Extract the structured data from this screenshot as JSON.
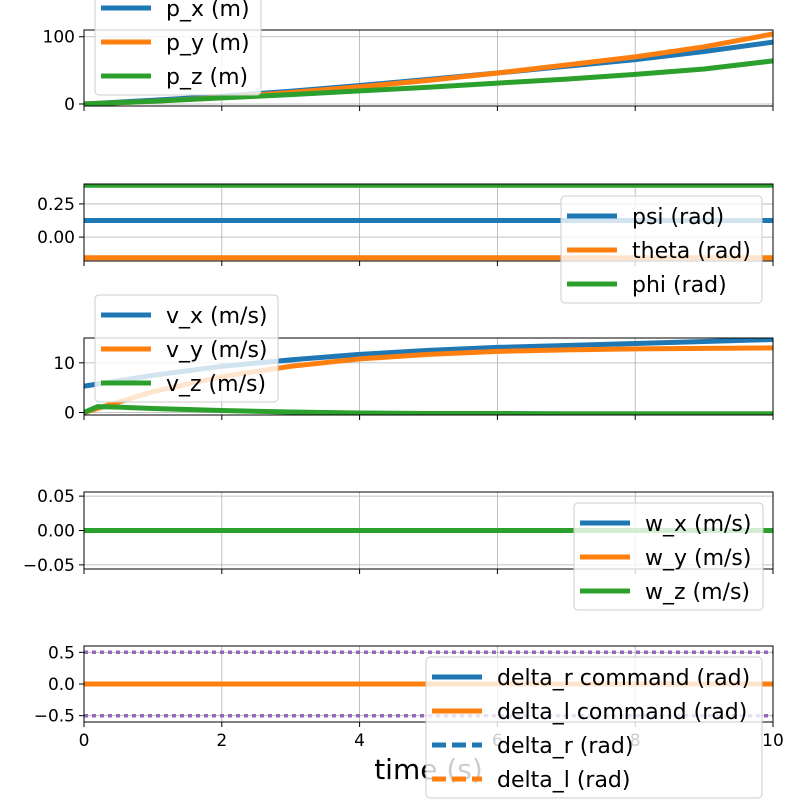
{
  "colors": {
    "blue": "#1f77b4",
    "orange": "#ff7f0e",
    "green": "#2ca02c",
    "purple": "#9467bd"
  },
  "chart_data": [
    {
      "type": "line",
      "xlim": [
        0,
        10
      ],
      "ylim": [
        -3,
        110
      ],
      "yticks": [
        0,
        100
      ],
      "ytick_labels": [
        "0",
        "100"
      ],
      "grid": true,
      "legend": "top-left",
      "series": [
        {
          "name": "p_x (m)",
          "color": "blue",
          "x": [
            0,
            1,
            2,
            3,
            4,
            5,
            6,
            7,
            8,
            9,
            10
          ],
          "values": [
            0,
            5.5,
            11.5,
            19,
            27.5,
            36.5,
            46,
            56,
            66,
            78,
            92
          ]
        },
        {
          "name": "p_y (m)",
          "color": "orange",
          "x": [
            0,
            1,
            2,
            3,
            4,
            5,
            6,
            7,
            8,
            9,
            10
          ],
          "values": [
            0,
            4,
            9.5,
            17,
            25.5,
            35,
            46,
            58,
            70,
            85,
            104
          ]
        },
        {
          "name": "p_z (m)",
          "color": "green",
          "x": [
            0,
            1,
            2,
            3,
            4,
            5,
            6,
            7,
            8,
            9,
            10
          ],
          "values": [
            0,
            4,
            9,
            14,
            19.5,
            25,
            31,
            37,
            44,
            52,
            64
          ]
        }
      ]
    },
    {
      "type": "line",
      "xlim": [
        0,
        10
      ],
      "ylim": [
        -0.18,
        0.4
      ],
      "yticks": [
        0.25,
        0.0
      ],
      "ytick_labels": [
        "0.25",
        "0.00"
      ],
      "grid": true,
      "legend": "lower-right",
      "series": [
        {
          "name": "psi (rad)",
          "color": "blue",
          "x": [
            0,
            10
          ],
          "values": [
            0.125,
            0.125
          ]
        },
        {
          "name": "theta (rad)",
          "color": "orange",
          "x": [
            0,
            10
          ],
          "values": [
            -0.155,
            -0.155
          ]
        },
        {
          "name": "phi (rad)",
          "color": "green",
          "x": [
            0,
            10
          ],
          "values": [
            0.39,
            0.39
          ]
        }
      ]
    },
    {
      "type": "line",
      "xlim": [
        0,
        10
      ],
      "ylim": [
        -0.5,
        15
      ],
      "yticks": [
        0,
        10
      ],
      "ytick_labels": [
        "0",
        "10"
      ],
      "grid": true,
      "legend": "upper-left",
      "series": [
        {
          "name": "v_x (m/s)",
          "color": "blue",
          "x": [
            0,
            1,
            2,
            3,
            4,
            5,
            6,
            7,
            8,
            9,
            10
          ],
          "values": [
            5.3,
            7.5,
            9.3,
            10.6,
            11.7,
            12.5,
            13.1,
            13.5,
            13.9,
            14.3,
            14.7
          ]
        },
        {
          "name": "v_y (m/s)",
          "color": "orange",
          "x": [
            0,
            1,
            2,
            3,
            4,
            5,
            6,
            7,
            8,
            9,
            10
          ],
          "values": [
            0,
            4.2,
            7.2,
            9.3,
            10.8,
            11.7,
            12.3,
            12.6,
            12.8,
            12.9,
            13.0
          ]
        },
        {
          "name": "v_z (m/s)",
          "color": "green",
          "x": [
            0,
            0.2,
            0.5,
            1,
            2,
            3,
            4,
            5,
            6,
            7,
            8,
            9,
            10
          ],
          "values": [
            0,
            1.2,
            1.1,
            0.8,
            0.4,
            0.1,
            -0.1,
            -0.2,
            -0.2,
            -0.25,
            -0.25,
            -0.25,
            -0.25
          ]
        }
      ]
    },
    {
      "type": "line",
      "xlim": [
        0,
        10
      ],
      "ylim": [
        -0.056,
        0.056
      ],
      "yticks": [
        0.05,
        0.0,
        -0.05
      ],
      "ytick_labels": [
        "0.05",
        "0.00",
        "−0.05"
      ],
      "grid": true,
      "legend": "lower-right",
      "series": [
        {
          "name": "w_x (m/s)",
          "color": "blue",
          "x": [
            0,
            10
          ],
          "values": [
            0,
            0
          ]
        },
        {
          "name": "w_y (m/s)",
          "color": "orange",
          "x": [
            0,
            10
          ],
          "values": [
            0,
            0
          ]
        },
        {
          "name": "w_z (m/s)",
          "color": "green",
          "x": [
            0,
            10
          ],
          "values": [
            0,
            0
          ]
        }
      ]
    },
    {
      "type": "line",
      "xlim": [
        0,
        10
      ],
      "ylim": [
        -0.6,
        0.6
      ],
      "yticks": [
        0.5,
        0.0,
        -0.5
      ],
      "ytick_labels": [
        "0.5",
        "0.0",
        "−0.5"
      ],
      "xticks": [
        0,
        2,
        4,
        6,
        8,
        10
      ],
      "xtick_labels": [
        "0",
        "2",
        "4",
        "6",
        "8",
        "10"
      ],
      "xlabel": "time (s)",
      "grid": true,
      "legend": "lower-right",
      "series": [
        {
          "name": "delta_r command (rad)",
          "color": "blue",
          "style": "solid",
          "x": [
            0,
            10
          ],
          "values": [
            0,
            0
          ]
        },
        {
          "name": "delta_l command (rad)",
          "color": "orange",
          "style": "solid",
          "x": [
            0,
            10
          ],
          "values": [
            0,
            0
          ]
        },
        {
          "name": "delta_r (rad)",
          "color": "blue",
          "style": "dashed",
          "x": [
            0,
            10
          ],
          "values": [
            0,
            0
          ]
        },
        {
          "name": "delta_l (rad)",
          "color": "orange",
          "style": "dashed",
          "x": [
            0,
            10
          ],
          "values": [
            0,
            0
          ]
        },
        {
          "color": "purple",
          "style": "dotted",
          "x": [
            0,
            10
          ],
          "values": [
            0.5,
            0.5
          ]
        },
        {
          "color": "purple",
          "style": "dotted",
          "x": [
            0,
            10
          ],
          "values": [
            -0.5,
            -0.5
          ]
        }
      ]
    }
  ]
}
